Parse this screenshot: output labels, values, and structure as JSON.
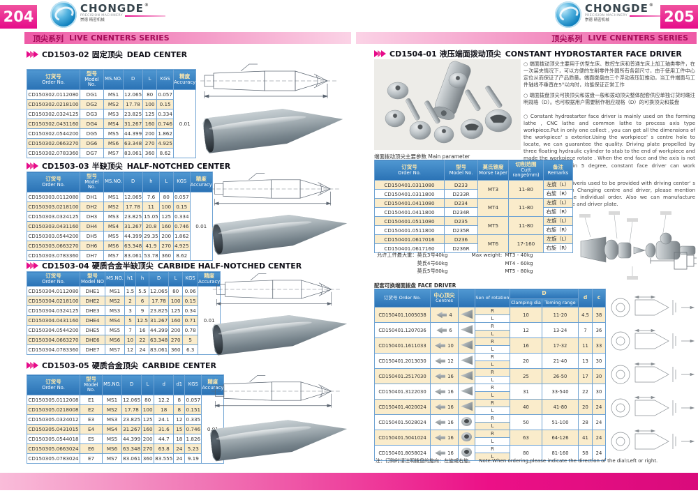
{
  "accent": {
    "pink": "#e60b8a",
    "band_text": "#a50c59",
    "table_header_blue": "#2a72b5",
    "row_alt": "#faeccb",
    "border_blue": "#6fa3d3"
  },
  "brand": {
    "name": "CHONGDE",
    "sub": "PRECISION MACHINERY",
    "cn": "崇德 精密机械",
    "reg": "®"
  },
  "series_band": {
    "cn": "顶尖系列",
    "en": "LIVE CNENTERS SERIES"
  },
  "left_page": {
    "page_number": "204",
    "sections": [
      {
        "code": "CD1503-02",
        "cn": "固定顶尖",
        "en": "DEAD CENTER",
        "columns": [
          [
            "订货号",
            "Order No."
          ],
          [
            "型号",
            "Model No."
          ],
          [
            null,
            "MS.NO."
          ],
          [
            null,
            "D"
          ],
          [
            null,
            "L"
          ],
          [
            null,
            "KGS"
          ],
          [
            "精度",
            "Accuracy"
          ]
        ],
        "rows": [
          [
            "CD150302.0112080",
            "DG1",
            "MS1",
            "12.065",
            "80",
            "0.057"
          ],
          [
            "CD150302.0218100",
            "DG2",
            "MS2",
            "17.78",
            "100",
            "0.15"
          ],
          [
            "CD150302.0324125",
            "DG3",
            "MS3",
            "23.825",
            "125",
            "0.334"
          ],
          [
            "CD150302.0431160",
            "DG4",
            "MS4",
            "31.267",
            "160",
            "0.746"
          ],
          [
            "CD150302.0544200",
            "DG5",
            "MS5",
            "44.399",
            "200",
            "1.862"
          ],
          [
            "CD150302.0663270",
            "DG6",
            "MS6",
            "63.348",
            "270",
            "4.925"
          ],
          [
            "CD150302.0783360",
            "DG7",
            "MS7",
            "83.061",
            "360",
            "8.62"
          ]
        ],
        "accuracy": "0.01"
      },
      {
        "code": "CD1503-03",
        "cn": "半缺顶尖",
        "en": "HALF-NOTCHED CENTER",
        "columns": [
          [
            "订货号",
            "Order No."
          ],
          [
            "型号",
            "Model No."
          ],
          [
            null,
            "MS.NO."
          ],
          [
            null,
            "D"
          ],
          [
            null,
            "h"
          ],
          [
            null,
            "L"
          ],
          [
            null,
            "KGS"
          ],
          [
            "精度",
            "Accuracy"
          ]
        ],
        "rows": [
          [
            "CD150303.0112080",
            "DH1",
            "MS1",
            "12.065",
            "7.6",
            "80",
            "0.057"
          ],
          [
            "CD150303.0218100",
            "DH2",
            "MS2",
            "17.78",
            "11",
            "100",
            "0.15"
          ],
          [
            "CD150303.0324125",
            "DH3",
            "MS3",
            "23.825",
            "15.05",
            "125",
            "0.334"
          ],
          [
            "CD150303.0431160",
            "DH4",
            "MS4",
            "31.267",
            "20.8",
            "160",
            "0.746"
          ],
          [
            "CD150303.0544200",
            "DH5",
            "MS5",
            "44.399",
            "29.35",
            "200",
            "1.862"
          ],
          [
            "CD150303.0663270",
            "DH6",
            "MS6",
            "63.348",
            "41.9",
            "270",
            "4.925"
          ],
          [
            "CD150303.0783360",
            "DH7",
            "MS7",
            "83.061",
            "53.78",
            "360",
            "8.62"
          ]
        ],
        "accuracy": "0.01"
      },
      {
        "code": "CD1503-04",
        "cn": "硬质合金半缺顶尖",
        "en": "CARBIDE HALF-NOTCHED CENTER",
        "columns": [
          [
            "订货号",
            "Order No."
          ],
          [
            "型号",
            "Model NO"
          ],
          [
            null,
            "MS.NO."
          ],
          [
            null,
            "h1"
          ],
          [
            null,
            "h"
          ],
          [
            null,
            "D"
          ],
          [
            null,
            "L"
          ],
          [
            null,
            "KGS"
          ],
          [
            "精度",
            "Accuracy"
          ]
        ],
        "rows": [
          [
            "CD150304.0112080",
            "DHE1",
            "MS1",
            "1.5",
            "5.5",
            "12.065",
            "80",
            "0.06"
          ],
          [
            "CD150304.0218100",
            "DHE2",
            "MS2",
            "2",
            "6",
            "17.78",
            "100",
            "0.15"
          ],
          [
            "CD150304.0324125",
            "DHE3",
            "MS3",
            "3",
            "9",
            "23.825",
            "125",
            "0.34"
          ],
          [
            "CD150304.0431160",
            "DHE4",
            "MS4",
            "5",
            "12.5",
            "31.267",
            "160",
            "0.71"
          ],
          [
            "CD150304.0544200",
            "DHE5",
            "MS5",
            "7",
            "16",
            "44.399",
            "200",
            "0.78"
          ],
          [
            "CD150304.0663270",
            "DHE6",
            "MS6",
            "10",
            "22",
            "63.348",
            "270",
            "5"
          ],
          [
            "CD150304.0783360",
            "DHE7",
            "MS7",
            "12",
            "24",
            "83.061",
            "360",
            "6.3"
          ]
        ],
        "accuracy": "0.01"
      },
      {
        "code": "CD1503-05",
        "cn": "硬质合金顶尖",
        "en": "CARBIDE CENTER",
        "columns": [
          [
            "订货号",
            "Order No."
          ],
          [
            "型号",
            "Model No."
          ],
          [
            null,
            "MS.NO."
          ],
          [
            null,
            "D"
          ],
          [
            null,
            "L"
          ],
          [
            null,
            "d"
          ],
          [
            null,
            "d1"
          ],
          [
            null,
            "KGS"
          ],
          [
            "精度",
            "Accuracy"
          ]
        ],
        "rows": [
          [
            "CD150305.0112008",
            "E1",
            "MS1",
            "12.065",
            "80",
            "12.2",
            "8",
            "0.057"
          ],
          [
            "CD150305.0218008",
            "E2",
            "MS2",
            "17.78",
            "100",
            "18",
            "8",
            "0.151"
          ],
          [
            "CD150305.0324012",
            "E3",
            "MS3",
            "23.825",
            "125",
            "24.1",
            "12",
            "0.335"
          ],
          [
            "CD150305.0431015",
            "E4",
            "MS4",
            "31.267",
            "160",
            "31.6",
            "15",
            "0.746"
          ],
          [
            "CD150305.0544018",
            "E5",
            "MS5",
            "44.399",
            "200",
            "44.7",
            "18",
            "1.826"
          ],
          [
            "CD150305.0663024",
            "E6",
            "MS6",
            "63.348",
            "270",
            "63.8",
            "24",
            "5.23"
          ],
          [
            "CD150305.0783024",
            "E7",
            "MS7",
            "83.061",
            "360",
            "83.555",
            "24",
            "9.19"
          ]
        ],
        "accuracy": "0.01"
      }
    ]
  },
  "right_page": {
    "page_number": "205",
    "title": {
      "code": "CD1504-01",
      "cn": "液压端面拨动顶尖",
      "en": "CONSTANT HYDROSTARTER FACE DRIVER"
    },
    "desc_cn_1": "○ 端面拨动顶尖主要用于仿型车床、数控车床和普通车床上加工轴类零件，在一次装夹情况下，可以方便的车削零件外圆所有各部尺寸，由于使用工件中心定位从而保证了产品质量。端面拨盘由三个浮动液压缸推动，当工件端面与工件轴线不垂直在5°以内时，均能保证正常工作",
    "desc_cn_2": "○ 端面拨盘顶尖可换顶尖和拨盘一般和拨动顶尖整体配套供应单独订货时确注明规格（D）。也可根据用户需要制作相应规格（D）的可换顶尖和拨盘",
    "desc_en_1": "○ Constant hydrostarter face driver is mainly used on the forming lathe , CNC lathe and common lathe to process axis type workpiece.Put in only one collect , you can get all the dimensions of the workpiece' s exterior.Using the workpiece' s centre hole to locate, we can guarantee the quality. Driving plate propelled by three floating hydraulic cylinder to stab to the end of workpiece and made the workpiece rotate . When the end face and the axis is not perpendicular within 5 degree, constant face driver can work regularly.",
    "desc_en_2": "○ Constant face driveris used to be provided with driving center' s body together with Changing centre and driver, please mention specification on the individual order. Also we can manufacture changingable centre and driver plate.",
    "main_param": {
      "label": "端面拨动顶尖主要参数 Main parameter",
      "columns": [
        [
          "订货号",
          "Order No."
        ],
        [
          "型号",
          "Model No."
        ],
        [
          "莫氏锥度",
          "Morse taper"
        ],
        [
          "切削范围",
          "Cutt range(mm)"
        ],
        [
          "备注",
          "Remarks"
        ]
      ],
      "groups": [
        {
          "orders": [
            "CD150401.0311080",
            "CD150401.0311800"
          ],
          "models": [
            "D233",
            "D233R"
          ],
          "taper": "MT3",
          "range": "11-80"
        },
        {
          "orders": [
            "CD150401.0411080",
            "CD150401.0411800"
          ],
          "models": [
            "D234",
            "D234R"
          ],
          "taper": "MT4",
          "range": "11-80"
        },
        {
          "orders": [
            "CD150401.0511080",
            "CD150401.0511800"
          ],
          "models": [
            "D235",
            "D235R"
          ],
          "taper": "MT5",
          "range": "11-80"
        },
        {
          "orders": [
            "CD150401.0617016",
            "CD150401.0617160"
          ],
          "models": [
            "D236",
            "D236R"
          ],
          "taper": "MT6",
          "range": "17-160"
        }
      ],
      "remarks": [
        "左旋（L）",
        "右旋（R）"
      ]
    },
    "max_weight": {
      "label_cn": "允许工件最大重：",
      "cn_lines": [
        "莫氏3号40kg",
        "莫氏4号60kg",
        "莫氏5号80kg"
      ],
      "label_en": "Max weight:",
      "en_lines": [
        "MT3 - 40kg",
        "MT4 - 60kg",
        "MT5 - 80kg"
      ]
    },
    "face_driver": {
      "label": "配套可换端面拨盘  FACE DRIVER",
      "h_order": "订货号 Order No.",
      "h_centre_cn": "中心顶尖",
      "h_centre_en": "Centres",
      "h_rot": "Sen of rotation",
      "h_D": "D",
      "h_clamp": "Clamping dia",
      "h_turn": "Toming range",
      "h_d": "d",
      "h_c": "c",
      "rotations": [
        "R",
        "L"
      ],
      "rows": [
        {
          "order": "CD150401.1005038",
          "centre": "4",
          "clamping": "10",
          "turning": "11-20",
          "d": "4.5",
          "c": "38"
        },
        {
          "order": "CD150401.1207036",
          "centre": "6",
          "clamping": "12",
          "turning": "13-24",
          "d": "7",
          "c": "36"
        },
        {
          "order": "CD150401.1611033",
          "centre": "10",
          "clamping": "16",
          "turning": "17-32",
          "d": "11",
          "c": "33"
        },
        {
          "order": "CD150401.2013030",
          "centre": "12",
          "clamping": "20",
          "turning": "21-40",
          "d": "13",
          "c": "30"
        },
        {
          "order": "CD150401.2517030",
          "centre": "16",
          "clamping": "25",
          "turning": "26-50",
          "d": "17",
          "c": "30"
        },
        {
          "order": "CD150401.3122030",
          "centre": "16",
          "clamping": "31",
          "turning": "33-540",
          "d": "22",
          "c": "30"
        },
        {
          "order": "CD150401.4020024",
          "centre": "16",
          "clamping": "40",
          "turning": "41-80",
          "d": "20",
          "c": "24"
        },
        {
          "order": "CD150401.5028024",
          "centre": "16",
          "clamping": "50",
          "turning": "51-100",
          "d": "28",
          "c": "24"
        },
        {
          "order": "CD150401.5041024",
          "centre": "16",
          "clamping": "63",
          "turning": "64-126",
          "d": "41",
          "c": "24"
        },
        {
          "order": "CD150401.8058024",
          "centre": "16",
          "clamping": "80",
          "turning": "81-160",
          "d": "58",
          "c": "24"
        }
      ]
    },
    "note_cn": "注：订购时请注明拨盘的旋向：左旋或右旋。",
    "note_en": "Note:When ordering,please indicate the direction of the dial:Left or right."
  }
}
